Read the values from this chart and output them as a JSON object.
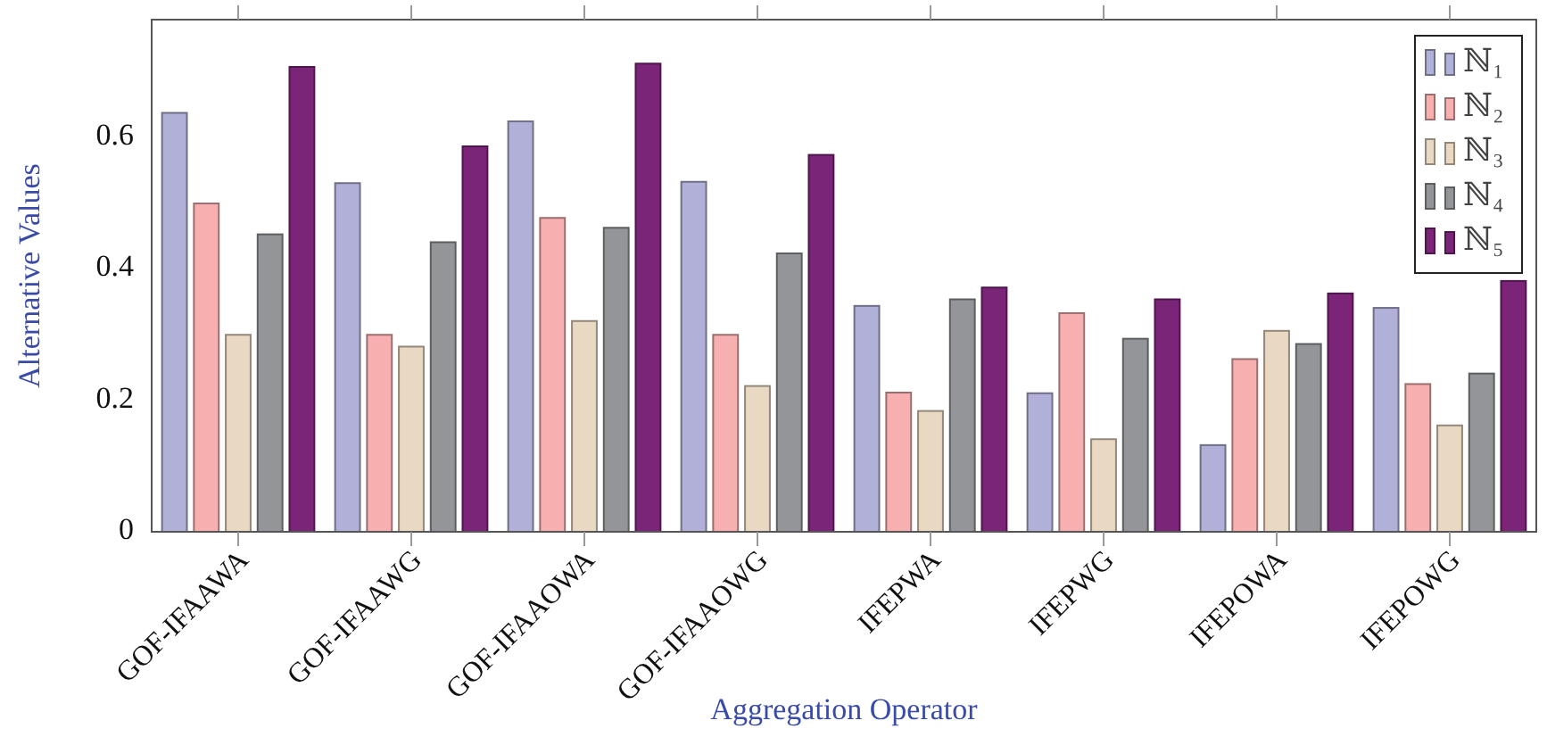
{
  "chart_data": {
    "type": "bar",
    "xlabel": "Aggregation Operator",
    "ylabel": "Alternative Values",
    "categories": [
      "GOF-IFAAWA",
      "GOF-IFAAWG",
      "GOF-IFAAOWA",
      "GOF-IFAAOWG",
      "IFEPWA",
      "IFEPWG",
      "IFEPOWA",
      "IFEPOWG"
    ],
    "series": [
      {
        "name": "ℕ₁",
        "color": "#b0b0d8",
        "values": [
          0.638,
          0.531,
          0.625,
          0.533,
          0.344,
          0.211,
          0.132,
          0.341
        ]
      },
      {
        "name": "ℕ₂",
        "color": "#f7afb0",
        "values": [
          0.5,
          0.3,
          0.478,
          0.3,
          0.212,
          0.333,
          0.263,
          0.225
        ]
      },
      {
        "name": "ℕ₃",
        "color": "#e9d8c2",
        "values": [
          0.3,
          0.282,
          0.321,
          0.222,
          0.184,
          0.141,
          0.306,
          0.162
        ]
      },
      {
        "name": "ℕ₄",
        "color": "#939598",
        "values": [
          0.453,
          0.441,
          0.463,
          0.424,
          0.354,
          0.294,
          0.286,
          0.241
        ]
      },
      {
        "name": "ℕ₅",
        "color": "#7b2578",
        "values": [
          0.708,
          0.587,
          0.713,
          0.574,
          0.372,
          0.354,
          0.363,
          0.382
        ]
      }
    ],
    "ylim": [
      0,
      0.78
    ],
    "yticks": [
      0,
      0.2,
      0.4,
      0.6
    ],
    "grid": false,
    "legend": "top right"
  }
}
